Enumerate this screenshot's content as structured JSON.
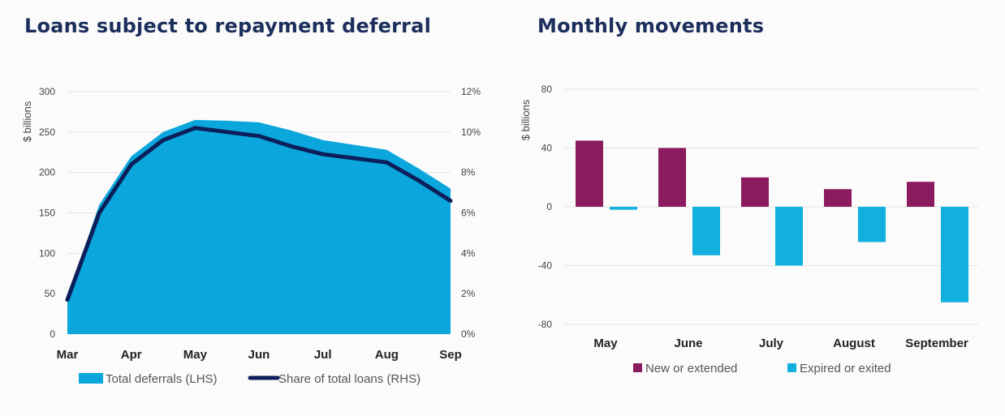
{
  "chart_data": [
    {
      "type": "area",
      "title": "Loans subject to repayment deferral",
      "ylabel": "$ billions",
      "ylim": [
        0,
        300
      ],
      "yticks": [
        "0",
        "50",
        "100",
        "150",
        "200",
        "250",
        "300"
      ],
      "y2lim": [
        0,
        12
      ],
      "y2ticks": [
        "0%",
        "2%",
        "4%",
        "6%",
        "8%",
        "10%",
        "12%"
      ],
      "categories": [
        "Mar",
        "Apr",
        "May",
        "Jun",
        "Jul",
        "Aug",
        "Sep"
      ],
      "x": [
        0,
        0.5,
        1,
        1.5,
        2,
        2.5,
        3,
        3.5,
        4,
        4.5,
        5,
        5.5,
        6
      ],
      "grid": true,
      "legend_position": "bottom",
      "series": [
        {
          "name": "Total deferrals (LHS)",
          "type": "area",
          "axis": "left",
          "color": "#0aa6dc",
          "values": [
            45,
            160,
            220,
            250,
            265,
            264,
            262,
            252,
            240,
            234,
            228,
            205,
            180
          ]
        },
        {
          "name": "Share of total loans (RHS)",
          "type": "line",
          "axis": "right",
          "color": "#0c1f5a",
          "values": [
            1.7,
            6.0,
            8.4,
            9.6,
            10.2,
            10.0,
            9.8,
            9.3,
            8.9,
            8.7,
            8.5,
            7.6,
            6.6
          ]
        }
      ]
    },
    {
      "type": "bar",
      "title": "Monthly movements",
      "ylabel": "$ billions",
      "ylim": [
        -80,
        80
      ],
      "yticks": [
        "80",
        "40",
        "0",
        "-40",
        "-80"
      ],
      "categories": [
        "May",
        "June",
        "July",
        "August",
        "September"
      ],
      "grid": true,
      "legend_position": "bottom",
      "series": [
        {
          "name": "New or extended",
          "color": "#8c1a5e",
          "values": [
            45,
            40,
            20,
            12,
            17
          ]
        },
        {
          "name": "Expired or exited",
          "color": "#11b0de",
          "values": [
            -2,
            -33,
            -40,
            -24,
            -65
          ]
        }
      ]
    }
  ]
}
